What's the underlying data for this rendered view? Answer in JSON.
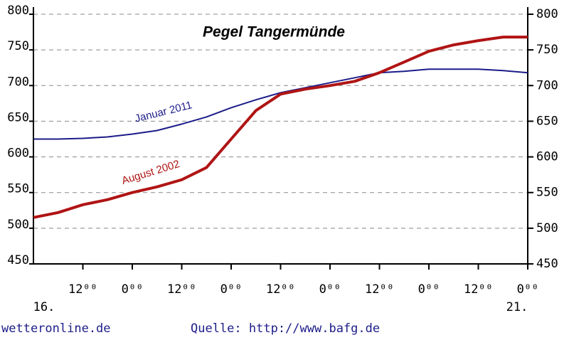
{
  "chart_data": {
    "type": "line",
    "title": "Pegel Tangermünde",
    "x": [
      0,
      6,
      12,
      18,
      24,
      30,
      36,
      42,
      48,
      54,
      60,
      66,
      72,
      78,
      84,
      90,
      96,
      102,
      108,
      114,
      120
    ],
    "xlim": [
      0,
      120
    ],
    "xticks": [
      {
        "value": 12,
        "label": "12⁰⁰"
      },
      {
        "value": 24,
        "label": "0⁰⁰"
      },
      {
        "value": 36,
        "label": "12⁰⁰"
      },
      {
        "value": 48,
        "label": "0⁰⁰"
      },
      {
        "value": 60,
        "label": "12⁰⁰"
      },
      {
        "value": 72,
        "label": "0⁰⁰"
      },
      {
        "value": 84,
        "label": "12⁰⁰"
      },
      {
        "value": 96,
        "label": "0⁰⁰"
      },
      {
        "value": 108,
        "label": "12⁰⁰"
      },
      {
        "value": 120,
        "label": "0⁰⁰"
      }
    ],
    "date_labels": [
      {
        "value": 0,
        "label": "16."
      },
      {
        "value": 120,
        "label": "21."
      }
    ],
    "ylim": [
      450,
      800
    ],
    "yticks": [
      450,
      500,
      550,
      600,
      650,
      700,
      750,
      800
    ],
    "y2lim": [
      450,
      800
    ],
    "y2ticks": [
      450,
      500,
      550,
      600,
      650,
      700,
      750,
      800
    ],
    "grid": true,
    "series": [
      {
        "name": "Januar 2011",
        "color": "#1c1c8a",
        "values": [
          625,
          625,
          626,
          628,
          632,
          637,
          646,
          656,
          669,
          680,
          690,
          697,
          704,
          711,
          718,
          720,
          723,
          723,
          723,
          721,
          718
        ]
      },
      {
        "name": "August 2002",
        "color": "#b01414",
        "values": [
          515,
          522,
          533,
          540,
          550,
          558,
          568,
          585,
          625,
          665,
          688,
          695,
          700,
          706,
          718,
          733,
          748,
          757,
          763,
          768,
          768
        ]
      }
    ],
    "footer": [
      "wetteronline.de",
      "Quelle: http://www.bafg.de"
    ]
  }
}
